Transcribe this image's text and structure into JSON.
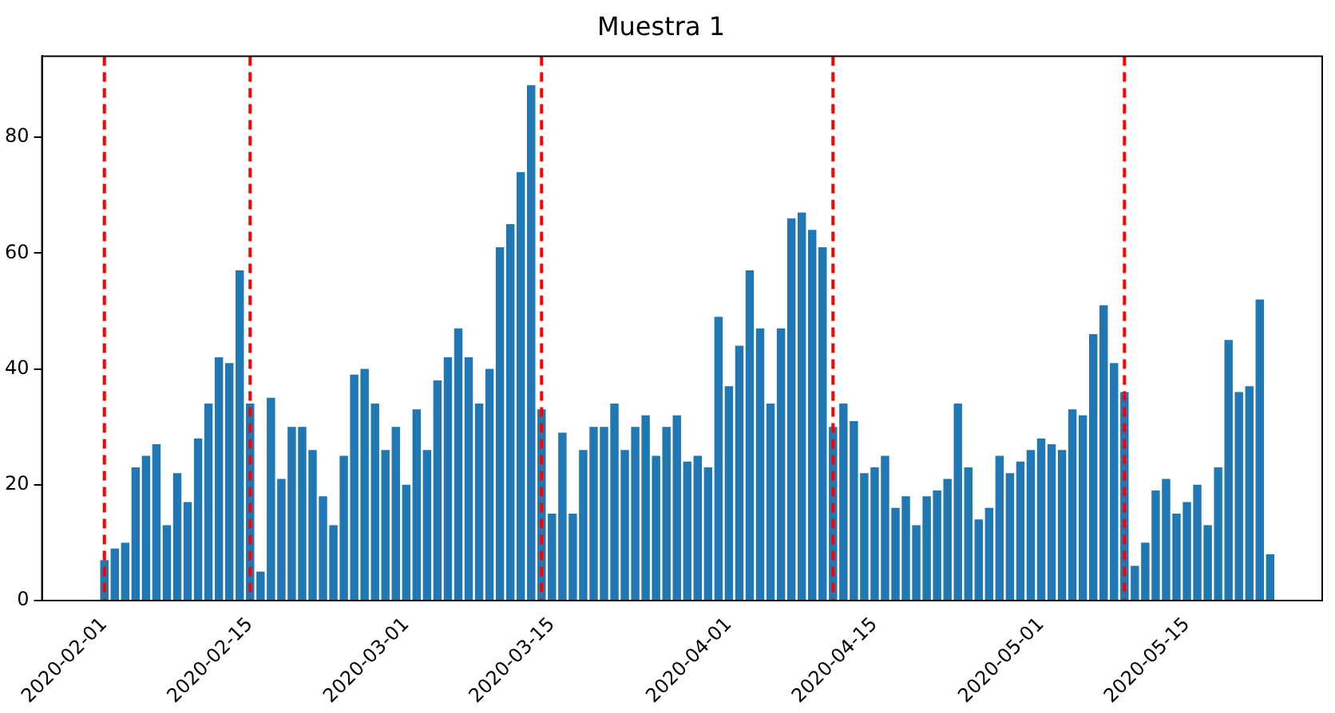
{
  "chart_data": {
    "type": "bar",
    "title": "Muestra 1",
    "color": "#1f77b4",
    "x": [
      "2020-02-01",
      "2020-02-02",
      "2020-02-03",
      "2020-02-04",
      "2020-02-05",
      "2020-02-06",
      "2020-02-07",
      "2020-02-08",
      "2020-02-09",
      "2020-02-10",
      "2020-02-11",
      "2020-02-12",
      "2020-02-13",
      "2020-02-14",
      "2020-02-15",
      "2020-02-16",
      "2020-02-17",
      "2020-02-18",
      "2020-02-19",
      "2020-02-20",
      "2020-02-21",
      "2020-02-22",
      "2020-02-23",
      "2020-02-24",
      "2020-02-25",
      "2020-02-26",
      "2020-02-27",
      "2020-02-28",
      "2020-02-29",
      "2020-03-01",
      "2020-03-02",
      "2020-03-03",
      "2020-03-04",
      "2020-03-05",
      "2020-03-06",
      "2020-03-07",
      "2020-03-08",
      "2020-03-09",
      "2020-03-10",
      "2020-03-11",
      "2020-03-12",
      "2020-03-13",
      "2020-03-14",
      "2020-03-15",
      "2020-03-16",
      "2020-03-17",
      "2020-03-18",
      "2020-03-19",
      "2020-03-20",
      "2020-03-21",
      "2020-03-22",
      "2020-03-23",
      "2020-03-24",
      "2020-03-25",
      "2020-03-26",
      "2020-03-27",
      "2020-03-28",
      "2020-03-29",
      "2020-03-30",
      "2020-03-31",
      "2020-04-01",
      "2020-04-02",
      "2020-04-03",
      "2020-04-04",
      "2020-04-05",
      "2020-04-06",
      "2020-04-07",
      "2020-04-08",
      "2020-04-09",
      "2020-04-10",
      "2020-04-11",
      "2020-04-12",
      "2020-04-13",
      "2020-04-14",
      "2020-04-15",
      "2020-04-16",
      "2020-04-17",
      "2020-04-18",
      "2020-04-19",
      "2020-04-20",
      "2020-04-21",
      "2020-04-22",
      "2020-04-23",
      "2020-04-24",
      "2020-04-25",
      "2020-04-26",
      "2020-04-27",
      "2020-04-28",
      "2020-04-29",
      "2020-04-30",
      "2020-05-01",
      "2020-05-02",
      "2020-05-03",
      "2020-05-04",
      "2020-05-05",
      "2020-05-06",
      "2020-05-07",
      "2020-05-08",
      "2020-05-09",
      "2020-05-10",
      "2020-05-11",
      "2020-05-12",
      "2020-05-13",
      "2020-05-14",
      "2020-05-15",
      "2020-05-16",
      "2020-05-17",
      "2020-05-18",
      "2020-05-19",
      "2020-05-20",
      "2020-05-21",
      "2020-05-22",
      "2020-05-23"
    ],
    "values": [
      7,
      9,
      10,
      23,
      25,
      27,
      13,
      22,
      17,
      28,
      34,
      42,
      41,
      57,
      34,
      5,
      35,
      21,
      30,
      30,
      26,
      18,
      13,
      25,
      39,
      40,
      34,
      26,
      30,
      20,
      33,
      26,
      38,
      42,
      47,
      42,
      34,
      40,
      61,
      65,
      74,
      89,
      33,
      15,
      29,
      15,
      26,
      30,
      30,
      34,
      26,
      30,
      32,
      25,
      30,
      32,
      24,
      25,
      23,
      49,
      37,
      44,
      57,
      47,
      34,
      47,
      66,
      67,
      64,
      61,
      30,
      34,
      31,
      22,
      23,
      25,
      16,
      18,
      13,
      18,
      19,
      21,
      34,
      23,
      14,
      16,
      25,
      22,
      24,
      26,
      28,
      27,
      26,
      33,
      32,
      46,
      51,
      41,
      36,
      6,
      10,
      19,
      21,
      15,
      17,
      20,
      13,
      23,
      45,
      36,
      37,
      52,
      8
    ],
    "xlim": [
      "2020-01-26",
      "2020-05-28"
    ],
    "xticks": [
      "2020-02-01",
      "2020-02-15",
      "2020-03-01",
      "2020-03-15",
      "2020-04-01",
      "2020-04-15",
      "2020-05-01",
      "2020-05-15"
    ],
    "ylim": [
      0,
      94
    ],
    "yticks": [
      0,
      20,
      40,
      60,
      80
    ],
    "ref_lines": [
      {
        "axis": "x",
        "value": "2020-02-01",
        "color": "#ff0000",
        "line_style": "dashed"
      },
      {
        "axis": "x",
        "value": "2020-02-15",
        "color": "#ff0000",
        "line_style": "dashed"
      },
      {
        "axis": "x",
        "value": "2020-03-14",
        "color": "#ff0000",
        "line_style": "dashed"
      },
      {
        "axis": "x",
        "value": "2020-04-11",
        "color": "#ff0000",
        "line_style": "dashed"
      },
      {
        "axis": "x",
        "value": "2020-05-09",
        "color": "#ff0000",
        "line_style": "dashed"
      }
    ]
  }
}
